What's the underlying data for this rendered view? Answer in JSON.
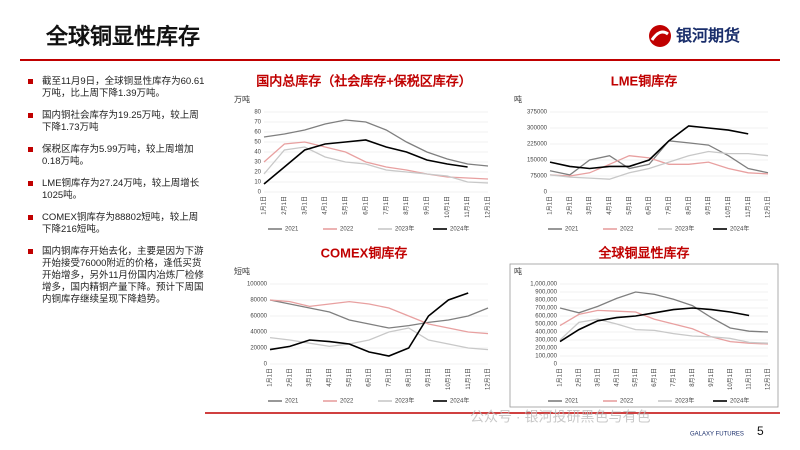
{
  "header": {
    "title": "全球铜显性库存",
    "logo": "银河期货"
  },
  "bullets": [
    "截至11月9日，全球铜显性库存为60.61万吨，比上周下降1.39万吨。",
    "国内铜社会库存为19.25万吨，较上周下降1.73万吨",
    "保税区库存为5.99万吨，较上周增加0.18万吨。",
    "LME铜库存为27.24万吨，较上周增长1025吨。",
    "COMEX铜库存为88802短吨，较上周下降216短吨。",
    "国内铜库存开始去化，主要是因为下游开始接受76000附近的价格，逢低买货开始增多，另外11月份国内冶炼厂检修增多，国内精铜产量下降。预计下周国内铜库存继续呈现下降趋势。"
  ],
  "footer": {
    "page": "5",
    "brand": "GALAXY FUTURES",
    "watermark": "公众号 · 银河投研黑色与有色"
  },
  "chart_data": [
    {
      "type": "line",
      "title": "国内总库存（社会库存+保税区库存）",
      "y_label": "万吨",
      "categories": [
        "1月1日",
        "2月1日",
        "3月1日",
        "4月1日",
        "5月1日",
        "6月1日",
        "7月1日",
        "8月1日",
        "9月1日",
        "10月1日",
        "11月1日",
        "12月1日"
      ],
      "ylim": [
        0,
        80
      ],
      "yticks": [
        0,
        10,
        20,
        30,
        40,
        50,
        60,
        70,
        80
      ],
      "series": [
        {
          "name": "2021",
          "color": "#7f7f7f",
          "values": [
            55,
            58,
            62,
            68,
            72,
            70,
            62,
            50,
            40,
            33,
            28,
            26
          ]
        },
        {
          "name": "2022",
          "color": "#e8a0a0",
          "values": [
            30,
            48,
            50,
            45,
            40,
            30,
            25,
            22,
            18,
            15,
            14,
            13
          ]
        },
        {
          "name": "2023年",
          "color": "#c8c8c8",
          "values": [
            18,
            42,
            45,
            35,
            30,
            28,
            22,
            20,
            18,
            16,
            10,
            9
          ]
        },
        {
          "name": "2024年",
          "color": "#000000",
          "values": [
            8,
            25,
            42,
            48,
            50,
            52,
            45,
            40,
            32,
            28,
            25,
            null
          ]
        }
      ]
    },
    {
      "type": "line",
      "title": "LME铜库存",
      "y_label": "吨",
      "categories": [
        "1月1日",
        "2月1日",
        "3月1日",
        "4月1日",
        "5月1日",
        "6月1日",
        "7月1日",
        "8月1日",
        "9月1日",
        "10月1日",
        "11月1日",
        "12月1日"
      ],
      "ylim": [
        0,
        375000
      ],
      "yticks": [
        0,
        75000,
        150000,
        225000,
        300000,
        375000
      ],
      "series": [
        {
          "name": "2021",
          "color": "#7f7f7f",
          "values": [
            100000,
            80000,
            150000,
            170000,
            110000,
            130000,
            240000,
            230000,
            220000,
            170000,
            110000,
            90000
          ]
        },
        {
          "name": "2022",
          "color": "#e8a0a0",
          "values": [
            80000,
            75000,
            90000,
            130000,
            170000,
            160000,
            130000,
            130000,
            140000,
            110000,
            90000,
            85000
          ]
        },
        {
          "name": "2023年",
          "color": "#c8c8c8",
          "values": [
            80000,
            70000,
            65000,
            60000,
            90000,
            110000,
            140000,
            170000,
            190000,
            180000,
            180000,
            170000
          ]
        },
        {
          "name": "2024年",
          "color": "#000000",
          "values": [
            140000,
            120000,
            110000,
            120000,
            120000,
            150000,
            240000,
            310000,
            300000,
            290000,
            272400,
            null
          ]
        }
      ]
    },
    {
      "type": "line",
      "title": "COMEX铜库存",
      "y_label": "短吨",
      "categories": [
        "1月1日",
        "2月1日",
        "3月1日",
        "4月1日",
        "5月1日",
        "6月1日",
        "7月1日",
        "8月1日",
        "9月1日",
        "10月1日",
        "11月1日",
        "12月1日"
      ],
      "ylim": [
        0,
        100000
      ],
      "yticks": [
        0,
        20000,
        40000,
        60000,
        80000,
        100000
      ],
      "series": [
        {
          "name": "2021",
          "color": "#7f7f7f",
          "values": [
            80000,
            75000,
            70000,
            65000,
            55000,
            50000,
            45000,
            48000,
            52000,
            55000,
            60000,
            70000
          ]
        },
        {
          "name": "2022",
          "color": "#e8a0a0",
          "values": [
            80000,
            78000,
            72000,
            75000,
            78000,
            75000,
            70000,
            60000,
            50000,
            45000,
            40000,
            38000
          ]
        },
        {
          "name": "2023年",
          "color": "#c8c8c8",
          "values": [
            33000,
            30000,
            26000,
            22000,
            25000,
            30000,
            40000,
            45000,
            30000,
            25000,
            20000,
            18000
          ]
        },
        {
          "name": "2024年",
          "color": "#000000",
          "values": [
            18000,
            22000,
            30000,
            28000,
            25000,
            15000,
            10000,
            20000,
            60000,
            80000,
            88802,
            null
          ]
        }
      ]
    },
    {
      "type": "line",
      "title": "全球铜显性库存",
      "y_label": "吨",
      "categories": [
        "1月1日",
        "2月1日",
        "3月1日",
        "4月1日",
        "5月1日",
        "6月1日",
        "7月1日",
        "8月1日",
        "9月1日",
        "10月1日",
        "11月1日",
        "12月1日"
      ],
      "ylim": [
        0,
        1000000
      ],
      "yticks": [
        0,
        {
          "value": 100000,
          "label": "100,000"
        },
        {
          "value": 200000,
          "label": "200,000"
        },
        {
          "value": 300000,
          "label": "300,000"
        },
        {
          "value": 400000,
          "label": "400,000"
        },
        {
          "value": 500000,
          "label": "500,000"
        },
        {
          "value": 600000,
          "label": "600,000"
        },
        {
          "value": 700000,
          "label": "700,000"
        },
        {
          "value": 800000,
          "label": "800,000"
        },
        {
          "value": 900000,
          "label": "900,000"
        },
        {
          "value": 1000000,
          "label": "1,000,000"
        }
      ],
      "series": [
        {
          "name": "2021",
          "color": "#7f7f7f",
          "values": [
            700000,
            640000,
            720000,
            820000,
            900000,
            870000,
            810000,
            730000,
            580000,
            450000,
            410000,
            400000
          ]
        },
        {
          "name": "2022",
          "color": "#e8a0a0",
          "values": [
            480000,
            620000,
            670000,
            660000,
            650000,
            560000,
            500000,
            440000,
            340000,
            280000,
            260000,
            250000
          ]
        },
        {
          "name": "2023年",
          "color": "#c8c8c8",
          "values": [
            300000,
            520000,
            560000,
            500000,
            430000,
            420000,
            380000,
            350000,
            340000,
            320000,
            270000,
            260000
          ]
        },
        {
          "name": "2024年",
          "color": "#000000",
          "values": [
            280000,
            430000,
            540000,
            580000,
            600000,
            640000,
            680000,
            700000,
            680000,
            650000,
            606100,
            null
          ]
        }
      ]
    }
  ]
}
